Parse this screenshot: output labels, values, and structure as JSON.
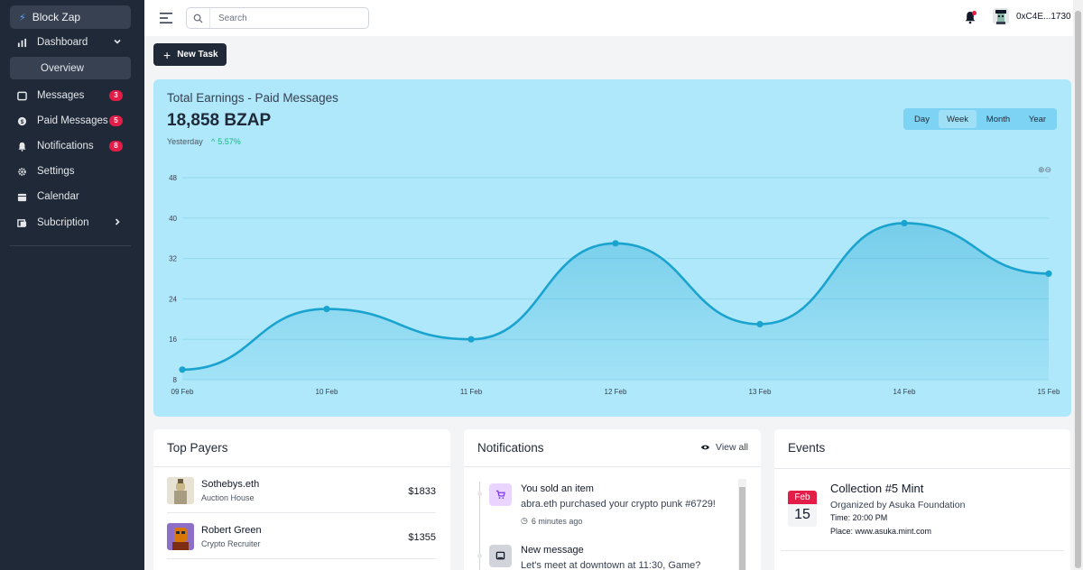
{
  "sidebar": {
    "brand": "Block Zap",
    "dashboard": "Dashboard",
    "overview": "Overview",
    "items": [
      {
        "label": "Messages",
        "badge": "3",
        "icon": "message-icon"
      },
      {
        "label": "Paid Messages",
        "badge": "5",
        "icon": "coin-icon"
      },
      {
        "label": "Notifications",
        "badge": "8",
        "icon": "bell-icon"
      },
      {
        "label": "Settings",
        "icon": "gear-icon"
      },
      {
        "label": "Calendar",
        "icon": "calendar-icon"
      },
      {
        "label": "Subcription",
        "icon": "subscription-icon"
      }
    ]
  },
  "header": {
    "search_placeholder": "Search",
    "wallet": "0xC4E...1730"
  },
  "new_task_label": "New Task",
  "earnings": {
    "title": "Total Earnings - Paid Messages",
    "value": "18,858 BZAP",
    "period": "Yesterday",
    "change": "5.57%",
    "tabs": [
      "Day",
      "Week",
      "Month",
      "Year"
    ],
    "active_tab": "Week"
  },
  "chart_data": {
    "type": "area",
    "x": [
      "09 Feb",
      "10 Feb",
      "11 Feb",
      "12 Feb",
      "13 Feb",
      "14 Feb",
      "15 Feb"
    ],
    "values": [
      10,
      22,
      16,
      35,
      19,
      39,
      29
    ],
    "yticks": [
      8,
      16,
      24,
      32,
      40,
      48
    ],
    "ylim": [
      8,
      48
    ],
    "color": "#1ba3cf",
    "grid": true
  },
  "top_payers": {
    "title": "Top Payers",
    "rows": [
      {
        "name": "Sothebys.eth",
        "role": "Auction House",
        "amount": "$1833"
      },
      {
        "name": "Robert Green",
        "role": "Crypto Recruiter",
        "amount": "$1355"
      }
    ]
  },
  "notifications": {
    "title": "Notifications",
    "view_all": "View all",
    "items": [
      {
        "title": "You sold an item",
        "body": "abra.eth purchased your crypto punk #6729!",
        "time": "6 minutes ago"
      },
      {
        "title": "New message",
        "body": "Let's meet at downtown at 11:30, Game?"
      }
    ]
  },
  "events": {
    "title": "Events",
    "items": [
      {
        "month": "Feb",
        "day": "15",
        "title": "Collection #5 Mint",
        "organizer": "Organized by Asuka Foundation",
        "time": "Time: 20:00 PM",
        "place": "Place: www.asuka.mint.com"
      }
    ]
  }
}
